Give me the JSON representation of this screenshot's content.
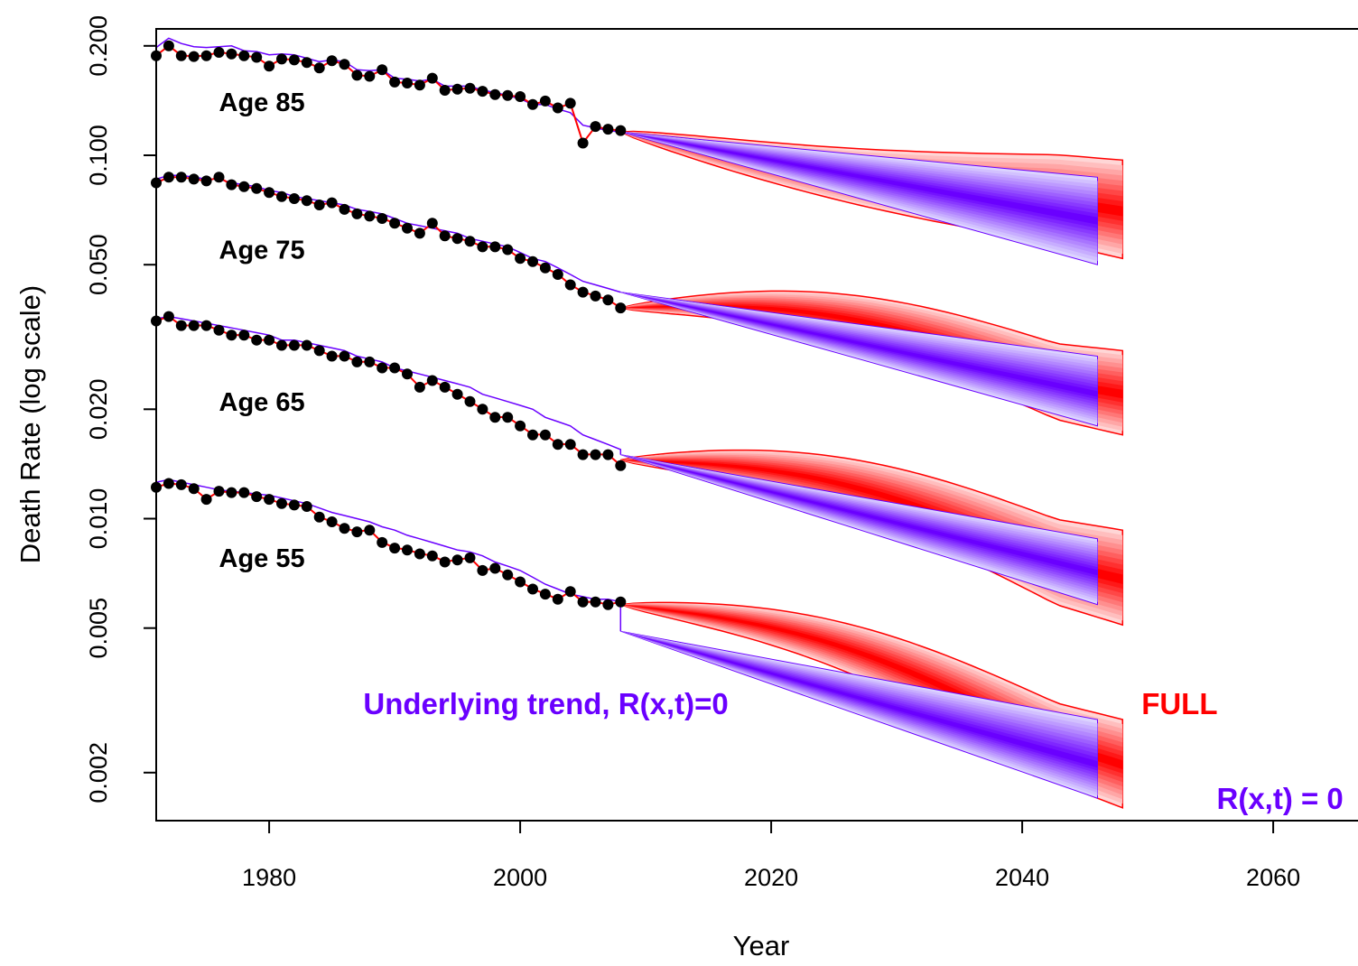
{
  "chart_data": {
    "type": "line",
    "title": "",
    "xlabel": "Year",
    "ylabel": "Death Rate (log scale)",
    "xlim": [
      1971,
      2070
    ],
    "ylim": [
      0.0015,
      0.21
    ],
    "y_scale": "log",
    "x_ticks": [
      1980,
      2000,
      2020,
      2040,
      2060
    ],
    "y_ticks": [
      {
        "value": 0.002,
        "label": "0.002"
      },
      {
        "value": 0.005,
        "label": "0.005"
      },
      {
        "value": 0.01,
        "label": "0.010"
      },
      {
        "value": 0.02,
        "label": "0.020"
      },
      {
        "value": 0.05,
        "label": "0.050"
      },
      {
        "value": 0.1,
        "label": "0.100"
      },
      {
        "value": 0.2,
        "label": "0.200"
      }
    ],
    "series": [
      {
        "name": "Age 85",
        "label_year": 1976,
        "label_rate": 0.14,
        "start_year": 1971,
        "observed": [
          0.188,
          0.2,
          0.188,
          0.187,
          0.188,
          0.192,
          0.19,
          0.188,
          0.186,
          0.176,
          0.184,
          0.183,
          0.18,
          0.174,
          0.182,
          0.178,
          0.166,
          0.165,
          0.172,
          0.159,
          0.158,
          0.156,
          0.163,
          0.151,
          0.152,
          0.153,
          0.15,
          0.147,
          0.146,
          0.145,
          0.138,
          0.141,
          0.135,
          0.139,
          0.108,
          0.12,
          0.118,
          0.117
        ],
        "trend_hist": [
          0.198,
          0.21,
          0.203,
          0.199,
          0.198,
          0.199,
          0.2,
          0.194,
          0.193,
          0.189,
          0.19,
          0.189,
          0.185,
          0.181,
          0.183,
          0.181,
          0.172,
          0.171,
          0.172,
          0.163,
          0.162,
          0.16,
          0.162,
          0.155,
          0.155,
          0.155,
          0.151,
          0.149,
          0.146,
          0.143,
          0.138,
          0.138,
          0.134,
          0.131,
          0.121,
          0.119,
          0.117,
          0.116
        ],
        "full_start": 0.116,
        "full_end_lo": 0.052,
        "full_end_hi": 0.097,
        "full_mid": 0.07,
        "r0_start": 0.116,
        "r0_end_lo": 0.05,
        "r0_end_hi": 0.087,
        "r0_mid": 0.066
      },
      {
        "name": "Age 75",
        "label_year": 1976,
        "label_rate": 0.055,
        "start_year": 1971,
        "observed": [
          0.084,
          0.087,
          0.087,
          0.086,
          0.085,
          0.087,
          0.083,
          0.082,
          0.081,
          0.079,
          0.077,
          0.076,
          0.075,
          0.073,
          0.074,
          0.071,
          0.069,
          0.068,
          0.067,
          0.065,
          0.063,
          0.061,
          0.065,
          0.06,
          0.059,
          0.058,
          0.056,
          0.056,
          0.055,
          0.052,
          0.051,
          0.049,
          0.047,
          0.044,
          0.042,
          0.041,
          0.04,
          0.038
        ],
        "trend_hist": [
          0.086,
          0.088,
          0.088,
          0.087,
          0.086,
          0.086,
          0.084,
          0.083,
          0.082,
          0.08,
          0.079,
          0.077,
          0.076,
          0.075,
          0.074,
          0.073,
          0.071,
          0.07,
          0.069,
          0.067,
          0.065,
          0.064,
          0.063,
          0.062,
          0.061,
          0.059,
          0.058,
          0.057,
          0.056,
          0.054,
          0.052,
          0.051,
          0.049,
          0.047,
          0.045,
          0.044,
          0.043,
          0.042
        ],
        "full_start": 0.038,
        "full_end_lo": 0.017,
        "full_end_hi": 0.029,
        "full_mid": 0.022,
        "r0_start": 0.042,
        "r0_end_lo": 0.018,
        "r0_end_hi": 0.028,
        "r0_mid": 0.022
      },
      {
        "name": "Age 65",
        "label_year": 1976,
        "label_rate": 0.021,
        "start_year": 1971,
        "observed": [
          0.035,
          0.036,
          0.034,
          0.034,
          0.034,
          0.033,
          0.032,
          0.032,
          0.031,
          0.031,
          0.03,
          0.03,
          0.03,
          0.029,
          0.028,
          0.028,
          0.027,
          0.027,
          0.026,
          0.026,
          0.025,
          0.023,
          0.024,
          0.023,
          0.022,
          0.021,
          0.02,
          0.019,
          0.019,
          0.018,
          0.017,
          0.017,
          0.016,
          0.016,
          0.015,
          0.015,
          0.015,
          0.014
        ],
        "trend_hist": [
          0.0355,
          0.036,
          0.0355,
          0.035,
          0.0345,
          0.034,
          0.0335,
          0.033,
          0.0325,
          0.032,
          0.031,
          0.031,
          0.0305,
          0.03,
          0.0295,
          0.029,
          0.028,
          0.0275,
          0.027,
          0.026,
          0.0255,
          0.025,
          0.0245,
          0.024,
          0.0235,
          0.023,
          0.022,
          0.0215,
          0.021,
          0.0205,
          0.02,
          0.019,
          0.0185,
          0.018,
          0.017,
          0.0165,
          0.016,
          0.0155
        ],
        "full_start": 0.0145,
        "full_end_lo": 0.0051,
        "full_end_hi": 0.0093,
        "full_mid": 0.0068,
        "r0_start": 0.015,
        "r0_end_lo": 0.0058,
        "r0_end_hi": 0.0088,
        "r0_mid": 0.0071
      },
      {
        "name": "Age 55",
        "label_year": 1976,
        "label_rate": 0.0078,
        "start_year": 1971,
        "observed": [
          0.0122,
          0.0125,
          0.0124,
          0.0121,
          0.0113,
          0.0119,
          0.0118,
          0.0118,
          0.0115,
          0.0113,
          0.011,
          0.0109,
          0.0108,
          0.0101,
          0.0098,
          0.0094,
          0.0092,
          0.0093,
          0.0086,
          0.0083,
          0.0082,
          0.008,
          0.0079,
          0.0076,
          0.0077,
          0.0078,
          0.0072,
          0.0073,
          0.007,
          0.0067,
          0.0064,
          0.0062,
          0.006,
          0.0063,
          0.0059,
          0.0059,
          0.0058,
          0.0059
        ],
        "trend_hist": [
          0.0126,
          0.0128,
          0.0126,
          0.0124,
          0.0122,
          0.012,
          0.0119,
          0.0118,
          0.0117,
          0.0116,
          0.0114,
          0.0112,
          0.011,
          0.0107,
          0.0104,
          0.0102,
          0.01,
          0.0098,
          0.0095,
          0.0093,
          0.009,
          0.0088,
          0.0086,
          0.0084,
          0.0082,
          0.0081,
          0.0079,
          0.0076,
          0.0074,
          0.0072,
          0.0069,
          0.0066,
          0.0064,
          0.0062,
          0.0061,
          0.006,
          0.006,
          0.0059
        ],
        "full_start": 0.0058,
        "full_end_lo": 0.0016,
        "full_end_hi": 0.0028,
        "full_mid": 0.0021,
        "r0_start": 0.0049,
        "r0_end_lo": 0.0017,
        "r0_end_hi": 0.0028,
        "r0_mid": 0.0021
      }
    ],
    "forecast": {
      "start_year": 2008,
      "full_end_year": 2048,
      "r0_end_year": 2046
    },
    "annotations": [
      {
        "text": "Underlying trend, R(x,t)=0",
        "year": 1987.5,
        "rate": 0.0031,
        "color": "#6a00ff"
      },
      {
        "text": "FULL",
        "year": 2049.5,
        "rate": 0.0031,
        "color": "#ff0000"
      },
      {
        "text": "R(x,t) = 0",
        "year": 2055.5,
        "rate": 0.0017,
        "color": "#6a00ff"
      }
    ],
    "colors": {
      "full": "#ff0000",
      "trend": "#6a00ff",
      "observed": "#000000"
    }
  }
}
